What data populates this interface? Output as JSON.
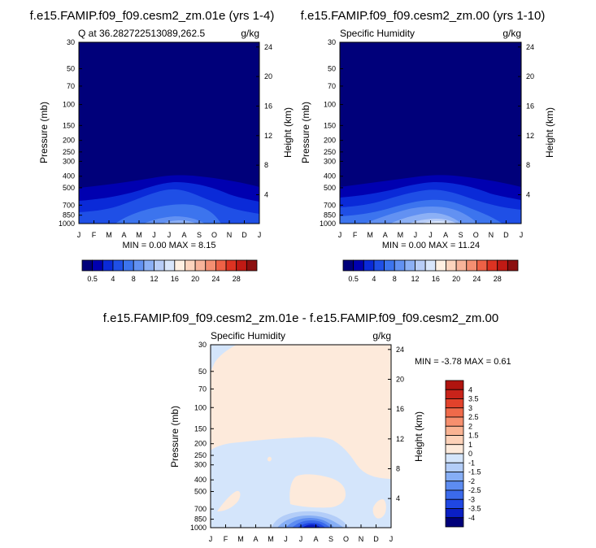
{
  "colors": {
    "ramp": [
      "#00007a",
      "#0000b0",
      "#0a2ad8",
      "#1f4fe6",
      "#3c74ee",
      "#6291f2",
      "#8cb0f5",
      "#b8cdf7",
      "#d9e6fb",
      "#fff0e2",
      "#fcd4bd",
      "#f8b49a",
      "#f58f72",
      "#ee6146",
      "#dd3322",
      "#c01a14",
      "#8c0f0f"
    ],
    "diff_ramp": [
      "#00007a",
      "#0a1fc4",
      "#1f47e3",
      "#3b6aeb",
      "#5d8cf1",
      "#86aef5",
      "#b3cdf8",
      "#d4e5fb",
      "#fdeadb",
      "#fdd2b9",
      "#f9b393",
      "#f68f6e",
      "#ef6a4a",
      "#e2422b",
      "#c8231a",
      "#b0140f"
    ]
  },
  "shared": {
    "months": [
      "J",
      "F",
      "M",
      "A",
      "M",
      "J",
      "J",
      "A",
      "S",
      "O",
      "N",
      "D",
      "J"
    ],
    "p_ticks": [
      "30",
      "50",
      "70",
      "100",
      "150",
      "200",
      "250",
      "300",
      "400",
      "500",
      "700",
      "850",
      "1000"
    ],
    "h_ticks": [
      "24",
      "20",
      "16",
      "12",
      "8",
      "4"
    ],
    "y_title": "Pressure (mb)",
    "y2_title": "Height (km)"
  },
  "panels": {
    "a": {
      "title": "f.e15.FAMIP.f09_f09.cesm2_zm.01e (yrs 1-4)",
      "left": "Q at 36.282722513089,262.5",
      "right": "g/kg",
      "stats": "MIN =   0.00 MAX =   8.15"
    },
    "b": {
      "title": "f.e15.FAMIP.f09_f09.cesm2_zm.00 (yrs 1-10)",
      "left": "Specific Humidity",
      "right": "g/kg",
      "stats": "MIN =   0.00 MAX =  11.24"
    },
    "c": {
      "title": "f.e15.FAMIP.f09_f09.cesm2_zm.01e - f.e15.FAMIP.f09_f09.cesm2_zm.00",
      "left": "Specific Humidity",
      "right": "g/kg",
      "stats": "MIN =  -3.78 MAX =   0.61"
    }
  },
  "colorbar": {
    "labels": [
      "0.5",
      "4",
      "8",
      "12",
      "16",
      "20",
      "24",
      "28"
    ]
  },
  "diff_colorbar": {
    "labels": [
      "4",
      "3.5",
      "3",
      "2.5",
      "2",
      "1.5",
      "1",
      "0",
      "-1",
      "-1.5",
      "-2",
      "-2.5",
      "-3",
      "-3.5",
      "-4"
    ]
  },
  "chart_data": [
    {
      "type": "heatmap",
      "title": "f.e15.FAMIP.f09_f09.cesm2_zm.01e (yrs 1-4)",
      "subtitle": "Q at 36.282722513089,262.5",
      "units": "g/kg",
      "x": [
        "J",
        "F",
        "M",
        "A",
        "M",
        "J",
        "J",
        "A",
        "S",
        "O",
        "N",
        "D",
        "J"
      ],
      "ylabel": "Pressure (mb)",
      "y2label": "Height (km)",
      "ylim": [
        1000,
        30
      ],
      "min": 0.0,
      "max": 8.15
    },
    {
      "type": "heatmap",
      "title": "f.e15.FAMIP.f09_f09.cesm2_zm.00 (yrs 1-10)",
      "subtitle": "Specific Humidity",
      "units": "g/kg",
      "x": [
        "J",
        "F",
        "M",
        "A",
        "M",
        "J",
        "J",
        "A",
        "S",
        "O",
        "N",
        "D",
        "J"
      ],
      "ylabel": "Pressure (mb)",
      "y2label": "Height (km)",
      "ylim": [
        1000,
        30
      ],
      "min": 0.0,
      "max": 11.24
    },
    {
      "type": "heatmap",
      "title": "f.e15.FAMIP.f09_f09.cesm2_zm.01e - f.e15.FAMIP.f09_f09.cesm2_zm.00",
      "subtitle": "Specific Humidity",
      "units": "g/kg",
      "x": [
        "J",
        "F",
        "M",
        "A",
        "M",
        "J",
        "J",
        "A",
        "S",
        "O",
        "N",
        "D",
        "J"
      ],
      "ylabel": "Pressure (mb)",
      "y2label": "Height (km)",
      "ylim": [
        1000,
        30
      ],
      "min": -3.78,
      "max": 0.61
    }
  ]
}
